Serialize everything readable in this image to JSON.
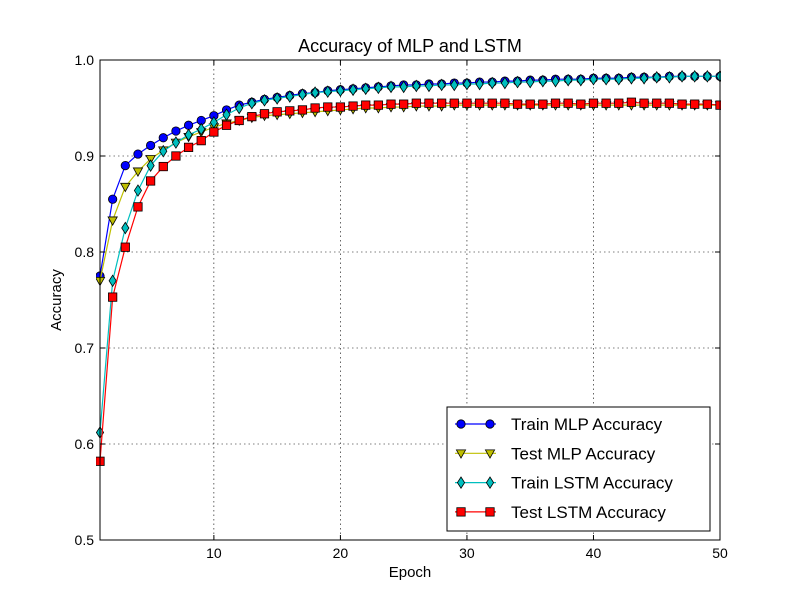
{
  "chart_data": {
    "type": "line",
    "title": "Accuracy of MLP and LSTM",
    "xlabel": "Epoch",
    "ylabel": "Accuracy",
    "xlim": [
      1,
      50
    ],
    "ylim": [
      0.5,
      1.0
    ],
    "xticks": [
      "10",
      "20",
      "30",
      "40",
      "50"
    ],
    "xtick_values": [
      10,
      20,
      30,
      40,
      50
    ],
    "yticks": [
      "0.5",
      "0.6",
      "0.7",
      "0.8",
      "0.9",
      "1.0"
    ],
    "ytick_values": [
      0.5,
      0.6,
      0.7,
      0.8,
      0.9,
      1.0
    ],
    "grid": true,
    "legend_position": "bottom-right",
    "x": [
      1,
      2,
      3,
      4,
      5,
      6,
      7,
      8,
      9,
      10,
      11,
      12,
      13,
      14,
      15,
      16,
      17,
      18,
      19,
      20,
      21,
      22,
      23,
      24,
      25,
      26,
      27,
      28,
      29,
      30,
      31,
      32,
      33,
      34,
      35,
      36,
      37,
      38,
      39,
      40,
      41,
      42,
      43,
      44,
      45,
      46,
      47,
      48,
      49,
      50
    ],
    "series": [
      {
        "name": "Train MLP Accuracy",
        "color": "#0000ff",
        "marker": "circle",
        "values": [
          0.775,
          0.855,
          0.89,
          0.902,
          0.911,
          0.919,
          0.926,
          0.932,
          0.937,
          0.942,
          0.948,
          0.953,
          0.956,
          0.959,
          0.961,
          0.963,
          0.965,
          0.966,
          0.968,
          0.969,
          0.97,
          0.971,
          0.972,
          0.973,
          0.974,
          0.974,
          0.975,
          0.975,
          0.976,
          0.976,
          0.977,
          0.977,
          0.978,
          0.978,
          0.979,
          0.979,
          0.98,
          0.98,
          0.98,
          0.981,
          0.981,
          0.981,
          0.982,
          0.982,
          0.982,
          0.983,
          0.983,
          0.983,
          0.983,
          0.983
        ]
      },
      {
        "name": "Test MLP Accuracy",
        "color": "#bfbf00",
        "marker": "triangle-down",
        "values": [
          0.77,
          0.833,
          0.868,
          0.884,
          0.897,
          0.906,
          0.914,
          0.92,
          0.925,
          0.93,
          0.934,
          0.937,
          0.94,
          0.942,
          0.943,
          0.944,
          0.945,
          0.946,
          0.947,
          0.948,
          0.949,
          0.95,
          0.95,
          0.951,
          0.951,
          0.952,
          0.952,
          0.952,
          0.953,
          0.953,
          0.953,
          0.953,
          0.953,
          0.953,
          0.953,
          0.953,
          0.953,
          0.953,
          0.953,
          0.953,
          0.953,
          0.953,
          0.953,
          0.953,
          0.953,
          0.953,
          0.953,
          0.953,
          0.953,
          0.953
        ]
      },
      {
        "name": "Train LSTM Accuracy",
        "color": "#00bfbf",
        "marker": "diamond",
        "values": [
          0.612,
          0.77,
          0.825,
          0.864,
          0.89,
          0.905,
          0.914,
          0.922,
          0.928,
          0.935,
          0.943,
          0.95,
          0.955,
          0.958,
          0.96,
          0.962,
          0.964,
          0.966,
          0.967,
          0.968,
          0.969,
          0.97,
          0.971,
          0.972,
          0.972,
          0.973,
          0.973,
          0.974,
          0.974,
          0.975,
          0.975,
          0.976,
          0.976,
          0.977,
          0.977,
          0.978,
          0.978,
          0.979,
          0.979,
          0.98,
          0.98,
          0.98,
          0.981,
          0.981,
          0.982,
          0.982,
          0.983,
          0.983,
          0.983,
          0.983
        ]
      },
      {
        "name": "Test LSTM Accuracy",
        "color": "#ff0000",
        "marker": "square",
        "values": [
          0.582,
          0.753,
          0.805,
          0.847,
          0.874,
          0.889,
          0.9,
          0.909,
          0.916,
          0.925,
          0.932,
          0.937,
          0.941,
          0.944,
          0.946,
          0.947,
          0.948,
          0.95,
          0.951,
          0.951,
          0.952,
          0.953,
          0.953,
          0.954,
          0.954,
          0.955,
          0.955,
          0.955,
          0.955,
          0.955,
          0.955,
          0.955,
          0.955,
          0.954,
          0.954,
          0.954,
          0.955,
          0.955,
          0.954,
          0.955,
          0.955,
          0.955,
          0.956,
          0.955,
          0.955,
          0.955,
          0.954,
          0.954,
          0.954,
          0.953
        ]
      }
    ]
  }
}
